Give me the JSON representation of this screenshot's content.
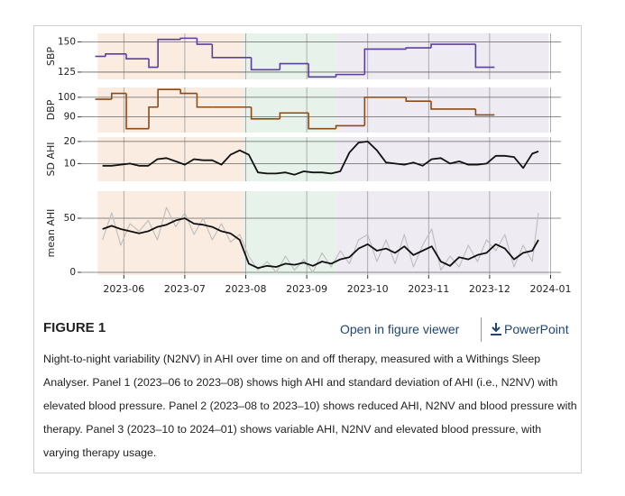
{
  "chart_data": [
    {
      "type": "step",
      "ylabel": "SBP",
      "color": "#5b3f9a",
      "x": [
        5.53,
        5.7,
        6.04,
        6.41,
        6.56,
        6.93,
        7.2,
        7.45,
        8.09,
        8.56,
        9.03,
        9.48,
        9.95,
        10.63,
        11.04,
        11.77,
        12.08
      ],
      "values": [
        138,
        140,
        136,
        129,
        152,
        153,
        148,
        137,
        127,
        132,
        121,
        123,
        144,
        145,
        148,
        129,
        129
      ],
      "xlim": [
        5.3,
        13.17
      ],
      "ylim": [
        119,
        157
      ],
      "yticks": [
        125,
        150
      ],
      "xticks": [
        6,
        7,
        8,
        9,
        10,
        11,
        12,
        13
      ],
      "bands": [
        {
          "from": 5.57,
          "to": 7.95,
          "color": "#faece0"
        },
        {
          "from": 7.95,
          "to": 9.49,
          "color": "#e7f3ea"
        },
        {
          "from": 9.49,
          "to": 12.97,
          "color": "#eeebf3"
        }
      ]
    },
    {
      "type": "step",
      "ylabel": "DBP",
      "color": "#8b4a16",
      "x": [
        5.53,
        5.8,
        6.04,
        6.41,
        6.56,
        6.93,
        7.2,
        7.45,
        8.09,
        8.56,
        9.03,
        9.48,
        9.95,
        10.63,
        11.04,
        11.77,
        12.08
      ],
      "values": [
        99,
        102,
        84,
        95,
        104,
        102,
        95,
        95,
        89,
        92,
        84,
        85.5,
        100,
        98,
        94,
        91,
        91
      ],
      "xlim": [
        5.3,
        13.17
      ],
      "ylim": [
        82,
        105
      ],
      "yticks": [
        90,
        100
      ],
      "xticks": [
        6,
        7,
        8,
        9,
        10,
        11,
        12,
        13
      ],
      "bands": [
        {
          "from": 5.57,
          "to": 7.95,
          "color": "#faece0"
        },
        {
          "from": 7.95,
          "to": 9.49,
          "color": "#e7f3ea"
        },
        {
          "from": 9.49,
          "to": 12.97,
          "color": "#eeebf3"
        }
      ]
    },
    {
      "type": "line",
      "ylabel": "SD AHI",
      "x": [
        5.65,
        5.8,
        5.95,
        6.1,
        6.25,
        6.4,
        6.55,
        6.7,
        6.85,
        7.0,
        7.15,
        7.3,
        7.45,
        7.6,
        7.75,
        7.9,
        8.05,
        8.2,
        8.35,
        8.5,
        8.65,
        8.8,
        8.95,
        9.1,
        9.25,
        9.4,
        9.55,
        9.7,
        9.85,
        10.0,
        10.15,
        10.3,
        10.45,
        10.6,
        10.75,
        10.9,
        11.05,
        11.2,
        11.35,
        11.5,
        11.65,
        11.8,
        11.95,
        12.1,
        12.25,
        12.4,
        12.55,
        12.7,
        12.8
      ],
      "series": [
        {
          "color": "#111111",
          "values": [
            9,
            9,
            9.5,
            10,
            9,
            9,
            12,
            12.5,
            11,
            9.5,
            12,
            11.5,
            11.5,
            9.5,
            14,
            16,
            14,
            6,
            5.5,
            5.5,
            6,
            5,
            6.5,
            6,
            6,
            5.5,
            6.5,
            15,
            19.5,
            20,
            16,
            10.5,
            10,
            9.5,
            10.5,
            9,
            12,
            12.5,
            10,
            11,
            9.5,
            9.5,
            10,
            13.5,
            13.5,
            13,
            8,
            14.5,
            15.5
          ]
        }
      ],
      "xlim": [
        5.3,
        13.17
      ],
      "ylim": [
        2,
        22
      ],
      "yticks": [
        10,
        20
      ],
      "xticks": [
        6,
        7,
        8,
        9,
        10,
        11,
        12,
        13
      ],
      "bands": [
        {
          "from": 5.57,
          "to": 7.95,
          "color": "#faece0"
        },
        {
          "from": 7.95,
          "to": 9.49,
          "color": "#e7f3ea"
        },
        {
          "from": 9.49,
          "to": 12.97,
          "color": "#eeebf3"
        }
      ]
    },
    {
      "type": "line",
      "ylabel": "mean AHI",
      "x": [
        5.65,
        5.8,
        5.95,
        6.1,
        6.25,
        6.4,
        6.55,
        6.7,
        6.85,
        7.0,
        7.15,
        7.3,
        7.45,
        7.6,
        7.75,
        7.9,
        8.05,
        8.2,
        8.35,
        8.5,
        8.65,
        8.8,
        8.95,
        9.1,
        9.25,
        9.4,
        9.55,
        9.7,
        9.85,
        10.0,
        10.15,
        10.3,
        10.45,
        10.6,
        10.75,
        10.9,
        11.05,
        11.2,
        11.35,
        11.5,
        11.65,
        11.8,
        11.95,
        12.1,
        12.25,
        12.4,
        12.55,
        12.7,
        12.8
      ],
      "series": [
        {
          "color": "#bdbdbd",
          "values": [
            30,
            55,
            25,
            45,
            38,
            48,
            30,
            60,
            42,
            55,
            35,
            50,
            30,
            45,
            28,
            35,
            15,
            2,
            10,
            0,
            15,
            2,
            12,
            0,
            18,
            5,
            20,
            8,
            30,
            35,
            10,
            30,
            8,
            35,
            5,
            25,
            40,
            2,
            15,
            5,
            25,
            10,
            30,
            20,
            35,
            5,
            25,
            10,
            55
          ]
        },
        {
          "color": "#111111",
          "values": [
            40,
            43,
            40,
            38,
            36,
            38,
            42,
            44,
            48,
            50,
            45,
            44,
            42,
            38,
            36,
            30,
            8,
            4,
            6,
            5,
            8,
            7,
            9,
            6,
            10,
            8,
            12,
            14,
            22,
            26,
            20,
            22,
            18,
            24,
            16,
            20,
            24,
            10,
            6,
            14,
            12,
            16,
            18,
            26,
            22,
            12,
            18,
            20,
            30
          ]
        }
      ],
      "xlim": [
        5.3,
        13.17
      ],
      "ylim": [
        -2.5,
        75
      ],
      "yticks": [
        0,
        50
      ],
      "xticks": [
        {
          "value": 6,
          "label": "2023-06"
        },
        {
          "value": 7,
          "label": "2023-07"
        },
        {
          "value": 8,
          "label": "2023-08"
        },
        {
          "value": 9,
          "label": "2023-09"
        },
        {
          "value": 10,
          "label": "2023-10"
        },
        {
          "value": 11,
          "label": "2023-11"
        },
        {
          "value": 12,
          "label": "2023-12"
        },
        {
          "value": 13,
          "label": "2024-01"
        }
      ],
      "bands": [
        {
          "from": 5.57,
          "to": 7.95,
          "color": "#faece0"
        },
        {
          "from": 7.95,
          "to": 9.49,
          "color": "#e7f3ea"
        },
        {
          "from": 9.49,
          "to": 12.97,
          "color": "#eeebf3"
        }
      ]
    }
  ],
  "figure_label": "FIGURE 1",
  "links": [
    "Open in figure viewer",
    "PowerPoint"
  ],
  "caption": "Night-to-night variability (N2NV) in AHI over time on and off therapy, measured with a Withings Sleep Analyser. Panel 1 (2023–06 to 2023–08) shows high AHI and standard deviation of AHI (i.e., N2NV) with elevated blood pressure. Panel 2 (2023–08 to 2023–10) shows reduced AHI, N2NV and blood pressure with therapy. Panel 3 (2023–10 to 2024–01) shows variable AHI, N2NV and elevated blood pressure, with varying therapy usage."
}
